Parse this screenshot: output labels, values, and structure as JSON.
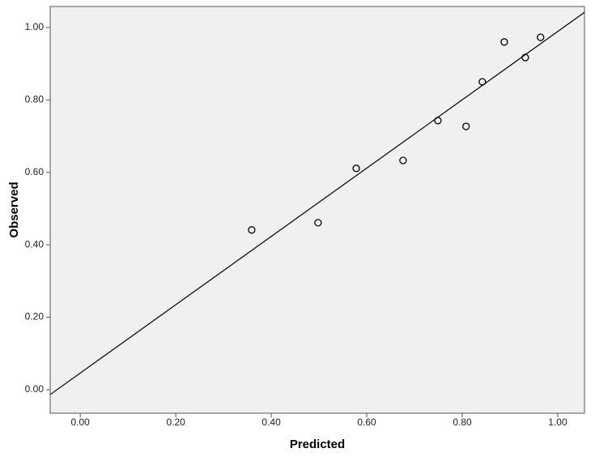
{
  "chart_data": {
    "type": "scatter",
    "x_label": "Predicted",
    "y_label": "Observed",
    "x": [
      0.359,
      0.498,
      0.578,
      0.676,
      0.749,
      0.808,
      0.842,
      0.888,
      0.932,
      0.964
    ],
    "values": [
      0.441,
      0.461,
      0.611,
      0.633,
      0.743,
      0.727,
      0.85,
      0.96,
      0.917,
      0.973
    ],
    "fit": {
      "slope": 0.943,
      "intercept": 0.046
    },
    "xlim": [
      -0.063,
      1.056
    ],
    "ylim": [
      -0.065,
      1.058
    ],
    "xticks": [
      {
        "value": 0,
        "label": "0.00"
      },
      {
        "value": 0.2,
        "label": "0.20"
      },
      {
        "value": 0.4,
        "label": "0.40"
      },
      {
        "value": 0.6,
        "label": "0.60"
      },
      {
        "value": 0.8,
        "label": "0.80"
      },
      {
        "value": 1,
        "label": "1.00"
      }
    ],
    "yticks": [
      {
        "value": 0,
        "label": "0.00"
      },
      {
        "value": 0.2,
        "label": "0.20"
      },
      {
        "value": 0.4,
        "label": "0.40"
      },
      {
        "value": 0.6,
        "label": "0.60"
      },
      {
        "value": 0.8,
        "label": "0.80"
      },
      {
        "value": 1,
        "label": "1.00"
      }
    ],
    "grid": false,
    "color": "#000000",
    "background": "#f0f0f0"
  }
}
